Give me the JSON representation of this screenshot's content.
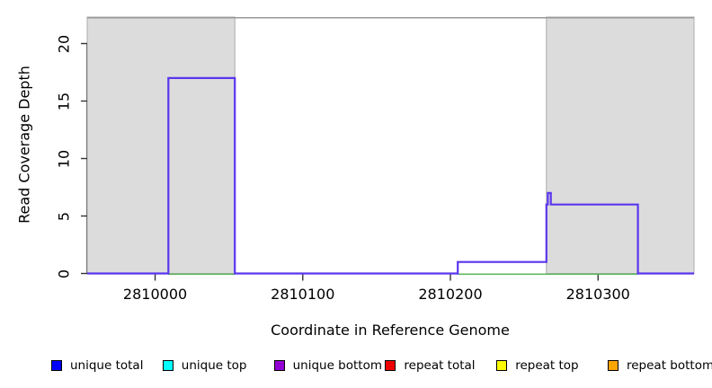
{
  "chart_data": {
    "type": "line",
    "subtype": "step",
    "title": "",
    "xlabel": "Coordinate in Reference Genome",
    "ylabel": "Read Coverage Depth",
    "xlim": [
      2809954,
      2810365
    ],
    "ylim": [
      0,
      22.3
    ],
    "x_ticks": [
      2810000,
      2810100,
      2810200,
      2810300
    ],
    "y_ticks": [
      0,
      5,
      10,
      15,
      20
    ],
    "grid": false,
    "legend_position": "bottom",
    "shaded_regions": {
      "fill_color": "#DCDCDC",
      "border_color": "#ABABAB",
      "intervals": [
        [
          2809954,
          2810054
        ],
        [
          2810265,
          2810365
        ]
      ]
    },
    "top_boundary": {
      "y_value": 22.25,
      "color": "#999999"
    },
    "series": [
      {
        "name": "coverage trace (unique total + unique bottom overlaid)",
        "color": "#5A36EE",
        "points": [
          [
            2809954,
            0
          ],
          [
            2810009,
            0
          ],
          [
            2810009,
            17
          ],
          [
            2810054,
            17
          ],
          [
            2810054,
            0
          ],
          [
            2810205,
            0
          ],
          [
            2810205,
            1
          ],
          [
            2810265,
            1
          ],
          [
            2810265,
            6
          ],
          [
            2810266,
            6
          ],
          [
            2810266,
            7
          ],
          [
            2810268,
            7
          ],
          [
            2810268,
            6
          ],
          [
            2810327,
            6
          ],
          [
            2810327,
            0
          ],
          [
            2810365,
            0
          ]
        ]
      },
      {
        "name": "zero-level baseline (green)",
        "color": "#5CB85C",
        "value": 0,
        "segments": [
          [
            2810009,
            2810054
          ],
          [
            2810205,
            2810327
          ]
        ]
      }
    ],
    "legend": [
      {
        "label": "unique total",
        "color": "#0000FF"
      },
      {
        "label": "unique top",
        "color": "#00FFFF"
      },
      {
        "label": "unique bottom",
        "color": "#9400D3"
      },
      {
        "label": "repeat total",
        "color": "#EE0000"
      },
      {
        "label": "repeat top",
        "color": "#FFFF00"
      },
      {
        "label": "repeat bottom",
        "color": "#FFA500"
      }
    ]
  }
}
